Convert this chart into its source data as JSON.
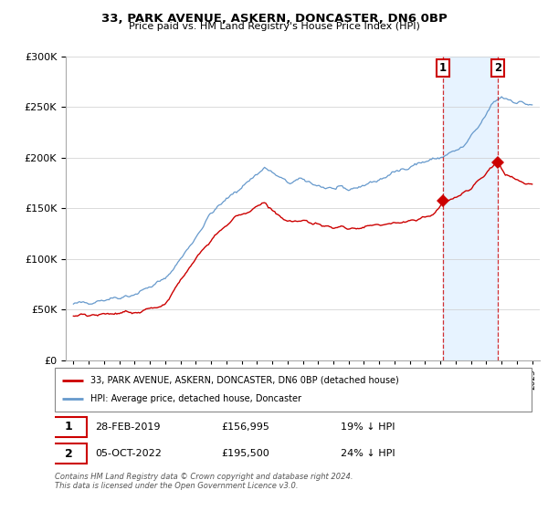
{
  "title": "33, PARK AVENUE, ASKERN, DONCASTER, DN6 0BP",
  "subtitle": "Price paid vs. HM Land Registry's House Price Index (HPI)",
  "legend_property": "33, PARK AVENUE, ASKERN, DONCASTER, DN6 0BP (detached house)",
  "legend_hpi": "HPI: Average price, detached house, Doncaster",
  "transaction1_date": "28-FEB-2019",
  "transaction1_price": 156995,
  "transaction1_label": "19% ↓ HPI",
  "transaction1_year": 2019.15,
  "transaction2_date": "05-OCT-2022",
  "transaction2_price": 195500,
  "transaction2_label": "24% ↓ HPI",
  "transaction2_year": 2022.75,
  "property_color": "#cc0000",
  "hpi_color": "#6699cc",
  "annotation_bg": "#ddeeff",
  "footer": "Contains HM Land Registry data © Crown copyright and database right 2024.\nThis data is licensed under the Open Government Licence v3.0.",
  "ylim": [
    0,
    300000
  ],
  "xlim_start": 1994.5,
  "xlim_end": 2025.5,
  "hpi_base": [
    [
      1995.0,
      55000
    ],
    [
      1997.0,
      60000
    ],
    [
      1999.0,
      65000
    ],
    [
      2001.0,
      80000
    ],
    [
      2002.5,
      110000
    ],
    [
      2004.0,
      145000
    ],
    [
      2005.5,
      165000
    ],
    [
      2007.5,
      190000
    ],
    [
      2009.0,
      175000
    ],
    [
      2010.0,
      178000
    ],
    [
      2011.5,
      170000
    ],
    [
      2013.0,
      168000
    ],
    [
      2015.0,
      178000
    ],
    [
      2017.0,
      192000
    ],
    [
      2019.0,
      200000
    ],
    [
      2020.5,
      210000
    ],
    [
      2021.5,
      230000
    ],
    [
      2022.5,
      255000
    ],
    [
      2023.0,
      260000
    ],
    [
      2024.0,
      255000
    ],
    [
      2025.0,
      252000
    ]
  ],
  "prop_base": [
    [
      1995.0,
      44000
    ],
    [
      1996.0,
      44500
    ],
    [
      1997.5,
      45500
    ],
    [
      1999.0,
      47000
    ],
    [
      2001.0,
      55000
    ],
    [
      2002.5,
      90000
    ],
    [
      2004.0,
      120000
    ],
    [
      2005.5,
      140000
    ],
    [
      2007.5,
      155000
    ],
    [
      2009.0,
      135000
    ],
    [
      2010.0,
      138000
    ],
    [
      2011.5,
      132000
    ],
    [
      2013.0,
      130000
    ],
    [
      2015.0,
      133000
    ],
    [
      2017.0,
      138000
    ],
    [
      2018.5,
      143000
    ],
    [
      2019.15,
      156995
    ],
    [
      2020.0,
      160000
    ],
    [
      2021.0,
      170000
    ],
    [
      2022.0,
      185000
    ],
    [
      2022.75,
      195500
    ],
    [
      2023.2,
      185000
    ],
    [
      2023.8,
      178000
    ],
    [
      2024.5,
      175000
    ],
    [
      2025.0,
      173000
    ]
  ]
}
